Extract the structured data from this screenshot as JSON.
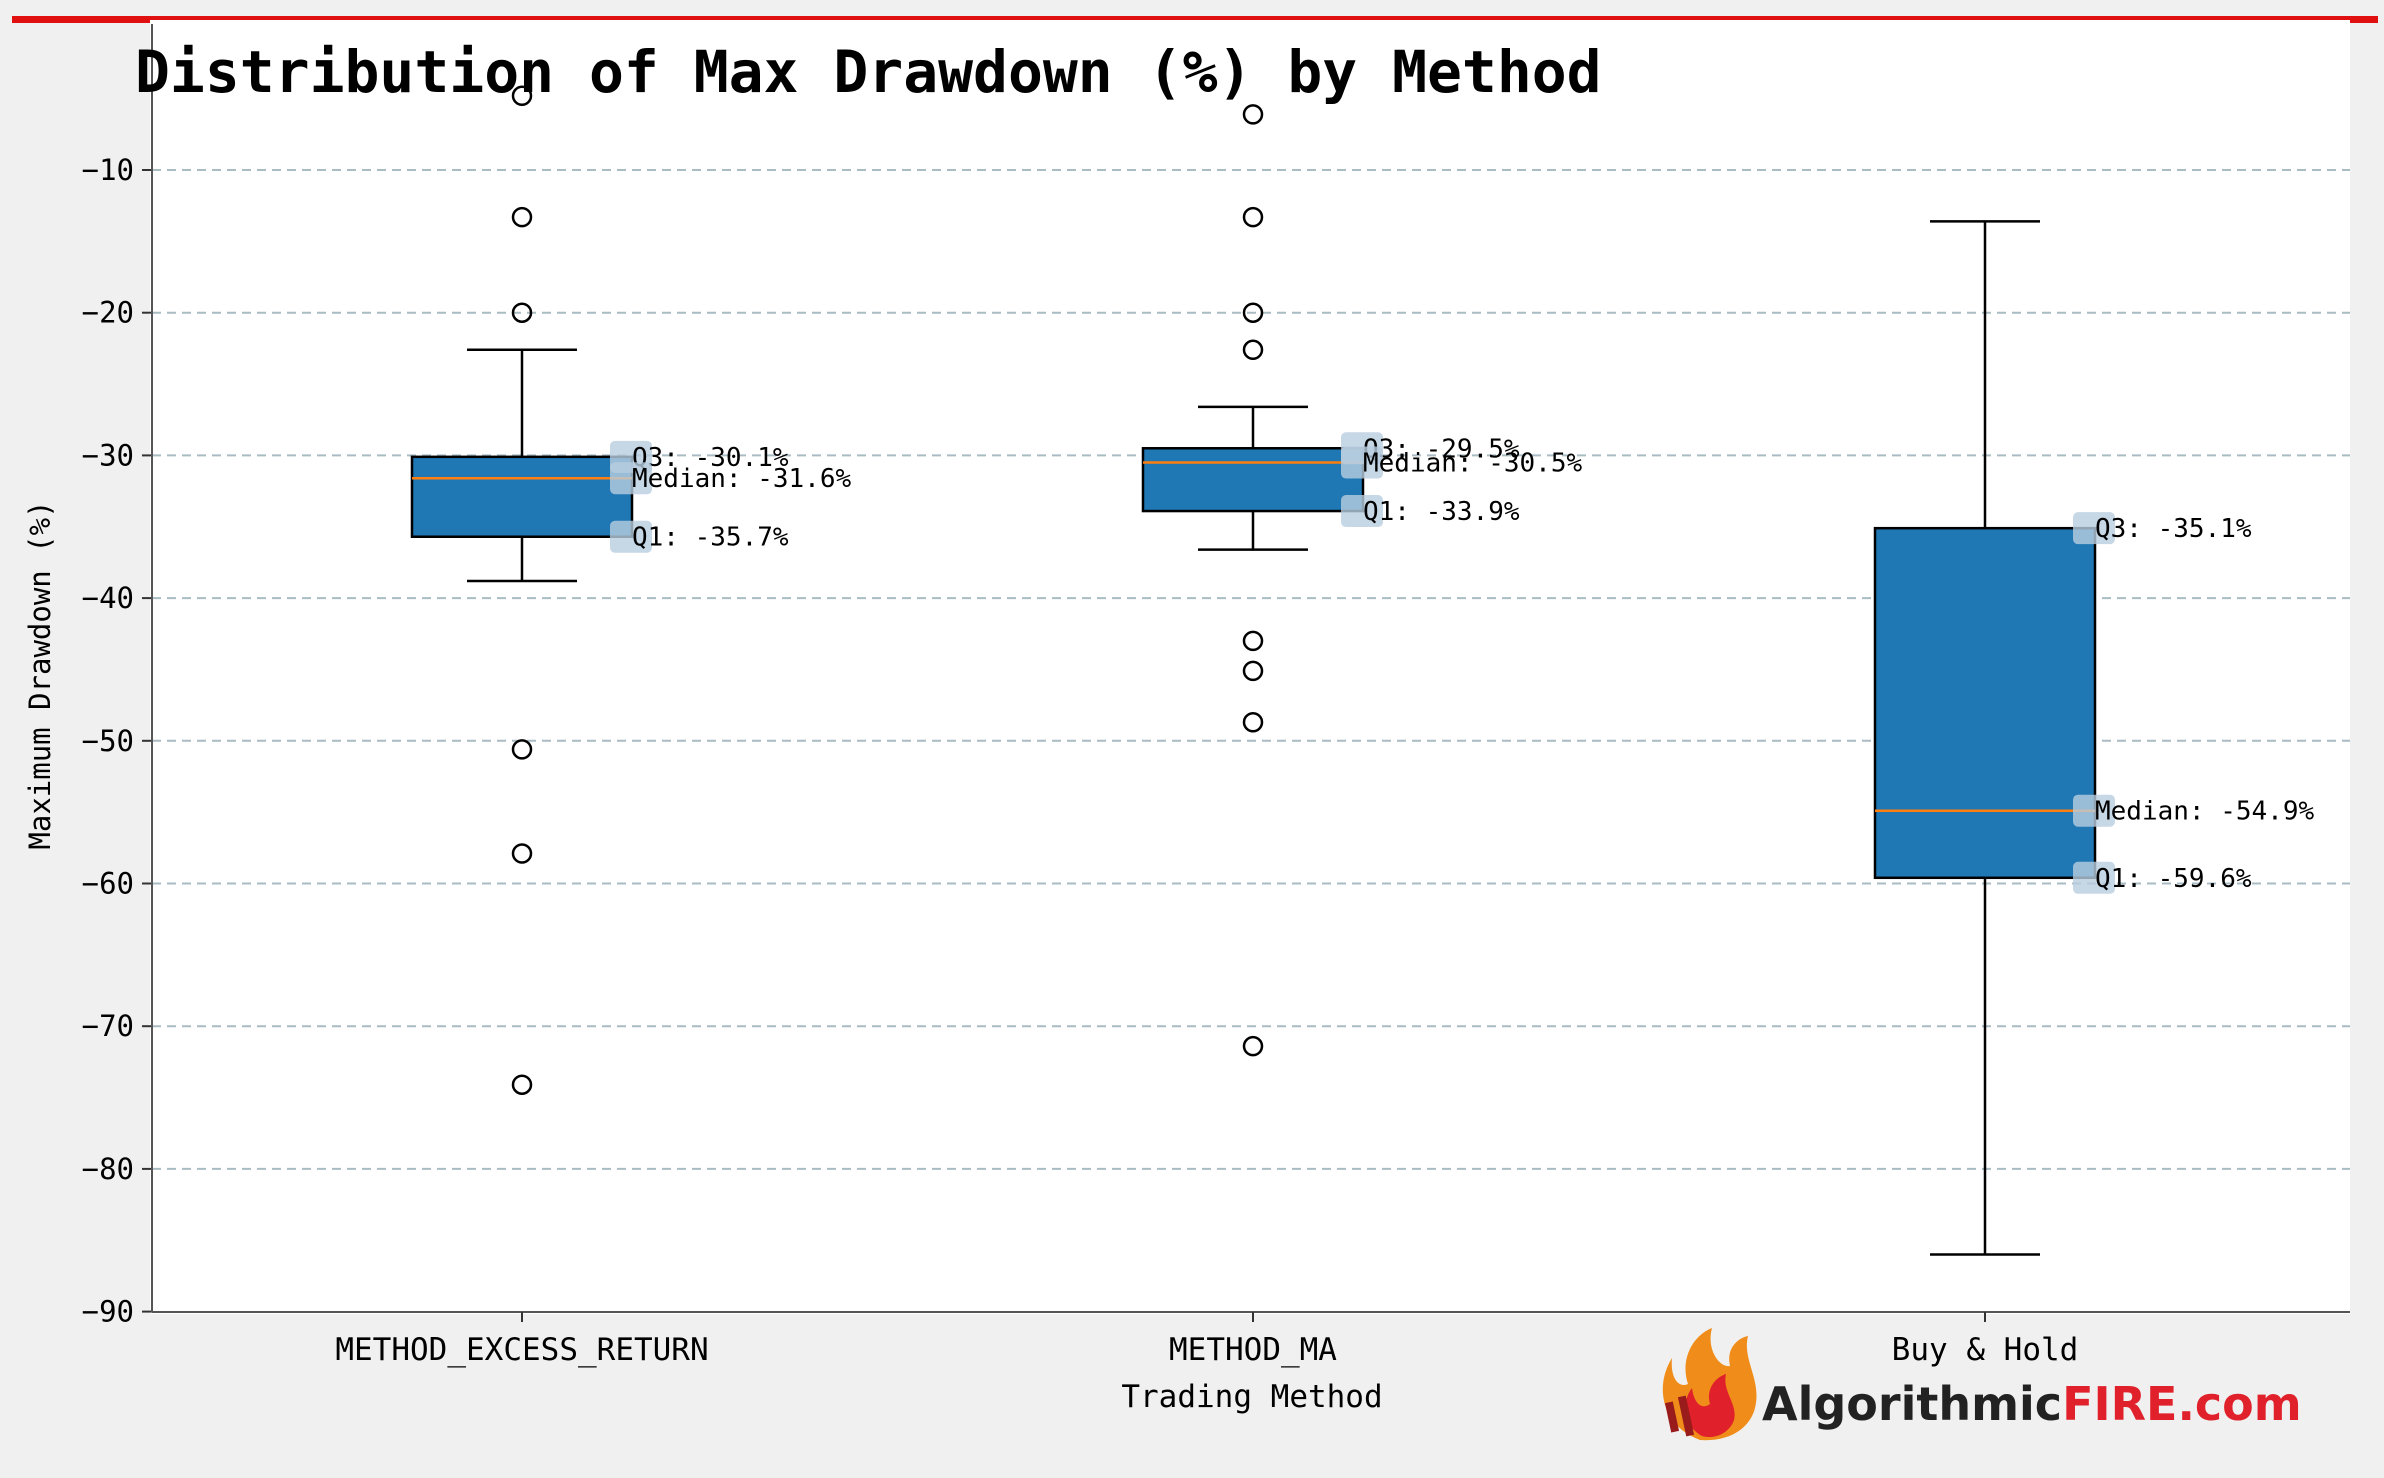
{
  "chart_data": {
    "type": "box",
    "title": "Distribution of Max Drawdown (%) by Method",
    "xlabel": "Trading Method",
    "ylabel": "Maximum Drawdown (%)",
    "ylim": [
      -90,
      -4
    ],
    "yticks": [
      -10,
      -20,
      -30,
      -40,
      -50,
      -60,
      -70,
      -80,
      -90
    ],
    "grid": "horizontal-dashed",
    "categories": [
      "METHOD_EXCESS_RETURN",
      "METHOD_MA",
      "Buy & Hold"
    ],
    "boxes": [
      {
        "category": "METHOD_EXCESS_RETURN",
        "q1": -35.7,
        "median": -31.6,
        "q3": -30.1,
        "whisker_low": -38.8,
        "whisker_high": -22.6,
        "outliers": [
          -4.8,
          -13.3,
          -20.0,
          -50.6,
          -57.9,
          -74.1
        ],
        "labels": {
          "q3": "Q3: -30.1%",
          "median": "Median: -31.6%",
          "q1": "Q1: -35.7%"
        }
      },
      {
        "category": "METHOD_MA",
        "q1": -33.9,
        "median": -30.5,
        "q3": -29.5,
        "whisker_low": -36.6,
        "whisker_high": -26.6,
        "outliers": [
          -6.1,
          -13.3,
          -20.0,
          -22.6,
          -43.0,
          -45.1,
          -48.7,
          -71.4
        ],
        "labels": {
          "q3": "Q3: -29.5%",
          "median": "Median: -30.5%",
          "q1": "Q1: -33.9%"
        }
      },
      {
        "category": "Buy & Hold",
        "q1": -59.6,
        "median": -54.9,
        "q3": -35.1,
        "whisker_low": -86.0,
        "whisker_high": -13.6,
        "outliers": [],
        "labels": {
          "q3": "Q3: -35.1%",
          "median": "Median: -54.9%",
          "q1": "Q1: -59.6%"
        }
      }
    ],
    "colors": {
      "box_fill": "#1f77b4",
      "median_line": "#ff7f0e",
      "grid": "#a9bcc4",
      "label_bg": "#b8cde0",
      "top_bar": "#e01010",
      "plot_bg": "#ffffff",
      "page_bg": "#f0f0f0"
    }
  },
  "logo": {
    "text_dark": "Algorithmic",
    "text_accent": "FIRE.com",
    "icon": "flame-icon",
    "color_dark": "#222222",
    "color_accent": "#e0202a"
  }
}
